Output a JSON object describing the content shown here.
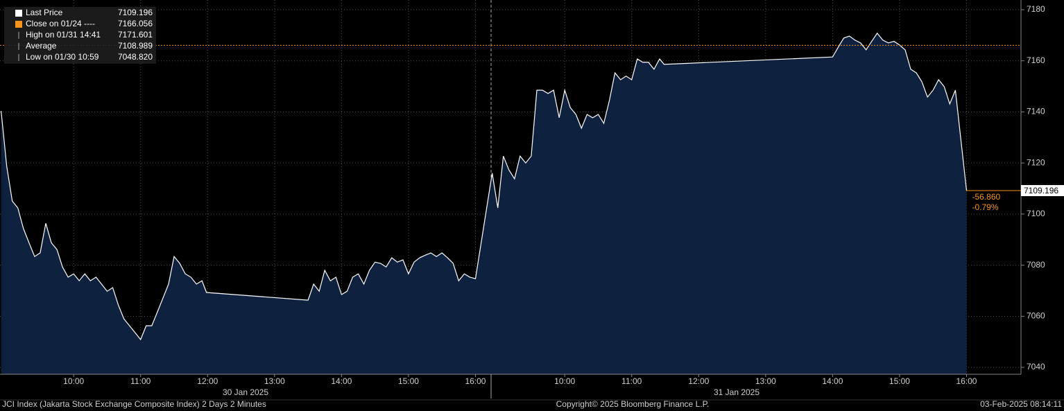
{
  "chart_data": {
    "type": "area",
    "color": "#ffffff",
    "fill": "#0e2240",
    "x": [
      "2025-01-30 08:55",
      "2025-01-30 09:00",
      "2025-01-30 09:05",
      "2025-01-30 09:10",
      "2025-01-30 09:15",
      "2025-01-30 09:20",
      "2025-01-30 09:25",
      "2025-01-30 09:30",
      "2025-01-30 09:35",
      "2025-01-30 09:40",
      "2025-01-30 09:45",
      "2025-01-30 09:50",
      "2025-01-30 09:55",
      "2025-01-30 10:00",
      "2025-01-30 10:05",
      "2025-01-30 10:10",
      "2025-01-30 10:15",
      "2025-01-30 10:20",
      "2025-01-30 10:25",
      "2025-01-30 10:30",
      "2025-01-30 10:35",
      "2025-01-30 10:40",
      "2025-01-30 10:45",
      "2025-01-30 10:50",
      "2025-01-30 10:55",
      "2025-01-30 11:00",
      "2025-01-30 11:05",
      "2025-01-30 11:10",
      "2025-01-30 11:15",
      "2025-01-30 11:20",
      "2025-01-30 11:25",
      "2025-01-30 11:30",
      "2025-01-30 11:35",
      "2025-01-30 11:40",
      "2025-01-30 11:45",
      "2025-01-30 11:50",
      "2025-01-30 11:55",
      "2025-01-30 11:59",
      "2025-01-30 13:30",
      "2025-01-30 13:35",
      "2025-01-30 13:40",
      "2025-01-30 13:45",
      "2025-01-30 13:50",
      "2025-01-30 13:55",
      "2025-01-30 14:00",
      "2025-01-30 14:05",
      "2025-01-30 14:10",
      "2025-01-30 14:15",
      "2025-01-30 14:20",
      "2025-01-30 14:25",
      "2025-01-30 14:30",
      "2025-01-30 14:35",
      "2025-01-30 14:40",
      "2025-01-30 14:45",
      "2025-01-30 14:50",
      "2025-01-30 14:55",
      "2025-01-30 15:00",
      "2025-01-30 15:05",
      "2025-01-30 15:10",
      "2025-01-30 15:15",
      "2025-01-30 15:20",
      "2025-01-30 15:25",
      "2025-01-30 15:30",
      "2025-01-30 15:35",
      "2025-01-30 15:40",
      "2025-01-30 15:45",
      "2025-01-30 15:50",
      "2025-01-30 15:55",
      "2025-01-30 16:00",
      "2025-01-31 08:55",
      "2025-01-31 09:00",
      "2025-01-31 09:05",
      "2025-01-31 09:10",
      "2025-01-31 09:15",
      "2025-01-31 09:20",
      "2025-01-31 09:25",
      "2025-01-31 09:30",
      "2025-01-31 09:35",
      "2025-01-31 09:40",
      "2025-01-31 09:45",
      "2025-01-31 09:50",
      "2025-01-31 09:55",
      "2025-01-31 10:00",
      "2025-01-31 10:05",
      "2025-01-31 10:10",
      "2025-01-31 10:15",
      "2025-01-31 10:20",
      "2025-01-31 10:25",
      "2025-01-31 10:30",
      "2025-01-31 10:35",
      "2025-01-31 10:40",
      "2025-01-31 10:45",
      "2025-01-31 10:50",
      "2025-01-31 10:55",
      "2025-01-31 11:00",
      "2025-01-31 11:05",
      "2025-01-31 11:10",
      "2025-01-31 11:15",
      "2025-01-31 11:20",
      "2025-01-31 11:25",
      "2025-01-31 11:29",
      "2025-01-31 14:00",
      "2025-01-31 14:05",
      "2025-01-31 14:10",
      "2025-01-31 14:15",
      "2025-01-31 14:20",
      "2025-01-31 14:25",
      "2025-01-31 14:30",
      "2025-01-31 14:35",
      "2025-01-31 14:40",
      "2025-01-31 14:45",
      "2025-01-31 14:50",
      "2025-01-31 14:55",
      "2025-01-31 15:00",
      "2025-01-31 15:05",
      "2025-01-31 15:10",
      "2025-01-31 15:15",
      "2025-01-31 15:20",
      "2025-01-31 15:25",
      "2025-01-31 15:30",
      "2025-01-31 15:35",
      "2025-01-31 15:40",
      "2025-01-31 15:45",
      "2025-01-31 15:50",
      "2025-01-31 16:00"
    ],
    "values": [
      7140.4,
      7118.7,
      7105.1,
      7102.4,
      7094.3,
      7088.8,
      7083.4,
      7084.8,
      7096.4,
      7088.8,
      7086.1,
      7079.3,
      7075.3,
      7076.6,
      7073.9,
      7076.6,
      7073.9,
      7075.3,
      7072.6,
      7069.8,
      7071.2,
      7064.4,
      7059.0,
      7056.3,
      7053.6,
      7050.9,
      7056.3,
      7056.3,
      7061.7,
      7067.1,
      7072.6,
      7083.4,
      7080.7,
      7076.6,
      7075.3,
      7072.6,
      7073.9,
      7069.3,
      7066.3,
      7072.6,
      7069.8,
      7078.0,
      7073.9,
      7075.3,
      7068.5,
      7069.8,
      7075.3,
      7076.6,
      7072.6,
      7078.0,
      7081.2,
      7080.7,
      7079.3,
      7082.9,
      7081.2,
      7082.1,
      7076.6,
      7081.2,
      7082.9,
      7083.9,
      7084.8,
      7083.4,
      7084.8,
      7082.9,
      7080.7,
      7073.9,
      7076.6,
      7075.3,
      7074.7,
      7116.0,
      7102.4,
      7122.7,
      7117.3,
      7113.8,
      7122.7,
      7120.0,
      7122.7,
      7148.5,
      7148.5,
      7147.2,
      7148.5,
      7137.7,
      7148.5,
      7141.7,
      7139.0,
      7133.6,
      7139.0,
      7137.7,
      7139.0,
      7135.5,
      7144.5,
      7155.3,
      7152.6,
      7154.0,
      7152.6,
      7160.7,
      7159.4,
      7159.4,
      7156.7,
      7160.7,
      7158.6,
      7161.5,
      7165.3,
      7168.9,
      7169.7,
      7168.1,
      7167.0,
      7164.3,
      7167.6,
      7170.8,
      7168.1,
      7167.0,
      7167.6,
      7166.2,
      7164.3,
      7156.7,
      7155.3,
      7151.8,
      7145.8,
      7148.5,
      7152.6,
      7149.9,
      7143.1,
      7148.5,
      7109.196
    ],
    "xlim": [
      "2025-01-30 08:54",
      "2025-01-31 16:14"
    ],
    "xticks": [
      {
        "value": "2025-01-30 10:00",
        "label": "10:00"
      },
      {
        "value": "2025-01-30 11:00",
        "label": "11:00"
      },
      {
        "value": "2025-01-30 12:00",
        "label": "12:00"
      },
      {
        "value": "2025-01-30 13:00",
        "label": "13:00"
      },
      {
        "value": "2025-01-30 14:00",
        "label": "14:00"
      },
      {
        "value": "2025-01-30 15:00",
        "label": "15:00"
      },
      {
        "value": "2025-01-30 16:00",
        "label": "16:00"
      },
      {
        "value": "2025-01-31 10:00",
        "label": "10:00"
      },
      {
        "value": "2025-01-31 11:00",
        "label": "11:00"
      },
      {
        "value": "2025-01-31 12:00",
        "label": "12:00"
      },
      {
        "value": "2025-01-31 13:00",
        "label": "13:00"
      },
      {
        "value": "2025-01-31 14:00",
        "label": "14:00"
      },
      {
        "value": "2025-01-31 15:00",
        "label": "15:00"
      },
      {
        "value": "2025-01-31 16:00",
        "label": "16:00"
      }
    ],
    "day_labels": [
      "30 Jan 2025",
      "31 Jan 2025"
    ],
    "ylim": [
      7037.3,
      7183.8
    ],
    "yticks": [
      7040,
      7060,
      7080,
      7100,
      7120,
      7140,
      7160,
      7180
    ],
    "grid": true,
    "legend": [
      {
        "name": "Last Price",
        "value": 7109.196,
        "color": "#ffffff"
      },
      {
        "name": "Close on 01/24 ----",
        "value": 7166.056,
        "color": "#f7941d"
      },
      {
        "name": "High on 01/31 14:41",
        "value": 7171.601
      },
      {
        "name": "Average",
        "value": 7108.989
      },
      {
        "name": "Low on 01/30 10:59",
        "value": 7048.82,
        "value_label": "7048.820"
      }
    ],
    "change": -56.86,
    "change_label": "-56.860",
    "change_pct": -0.79,
    "change_pct_label": "-0.79%",
    "footer_left": "JCI Index (Jakarta Stock Exchange Composite Index) 2 Days 2 Minutes",
    "footer_center": "Copyright© 2025 Bloomberg Finance L.P.",
    "footer_right": "03-Feb-2025 08:14:11"
  }
}
